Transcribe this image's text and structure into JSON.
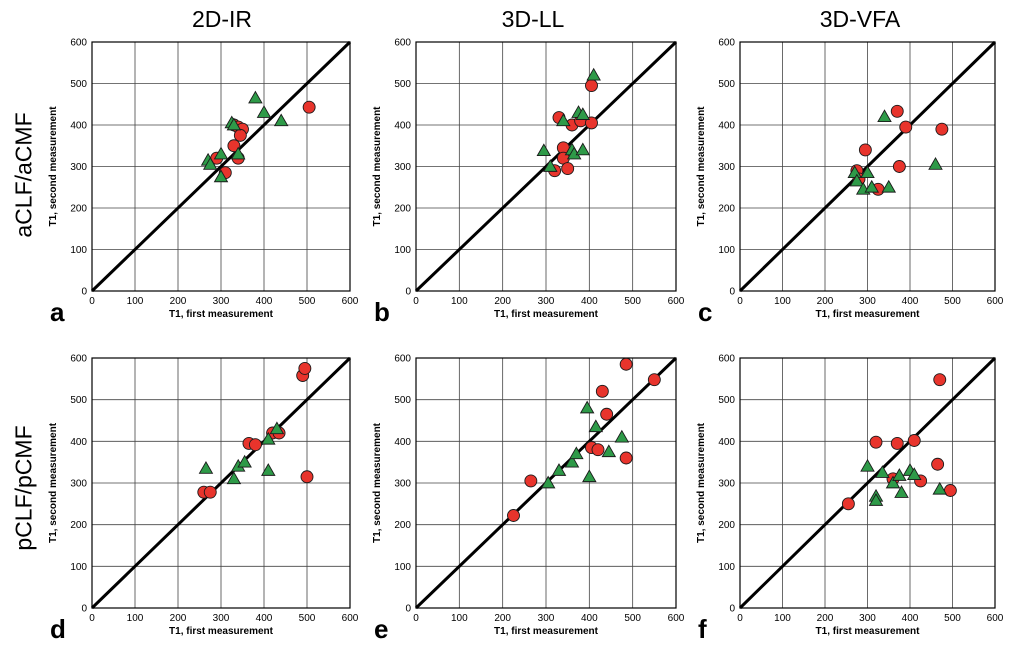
{
  "column_headers": [
    "2D-IR",
    "3D-LL",
    "3D-VFA"
  ],
  "row_headers": [
    "aCLF/aCMF",
    "pCLF/pCMF"
  ],
  "colors": {
    "circle_fill": "#e8342c",
    "triangle_fill": "#2e9a48",
    "marker_stroke": "#1a1a1a"
  },
  "chart_data": [
    {
      "type": "scatter",
      "panel_label": "a",
      "xlabel": "T1, first measurement",
      "ylabel": "T1, second measurement",
      "xlim": [
        0,
        600
      ],
      "ylim": [
        0,
        600
      ],
      "xticks": [
        0,
        100,
        200,
        300,
        400,
        500,
        600
      ],
      "yticks": [
        0,
        100,
        200,
        300,
        400,
        500,
        600
      ],
      "grid": true,
      "identity_line": true,
      "series": [
        {
          "marker": "circle",
          "points": [
            [
              330,
              400
            ],
            [
              340,
              395
            ],
            [
              350,
              390
            ],
            [
              345,
              375
            ],
            [
              330,
              350
            ],
            [
              340,
              320
            ],
            [
              310,
              285
            ],
            [
              290,
              320
            ],
            [
              505,
              443
            ]
          ]
        },
        {
          "marker": "triangle",
          "points": [
            [
              270,
              315
            ],
            [
              275,
              305
            ],
            [
              300,
              275
            ],
            [
              300,
              330
            ],
            [
              325,
              405
            ],
            [
              330,
              400
            ],
            [
              340,
              330
            ],
            [
              380,
              465
            ],
            [
              400,
              430
            ],
            [
              440,
              410
            ]
          ]
        }
      ]
    },
    {
      "type": "scatter",
      "panel_label": "b",
      "xlabel": "T1, first measurement",
      "ylabel": "T1, second measurement",
      "xlim": [
        0,
        600
      ],
      "ylim": [
        0,
        600
      ],
      "xticks": [
        0,
        100,
        200,
        300,
        400,
        500,
        600
      ],
      "yticks": [
        0,
        100,
        200,
        300,
        400,
        500,
        600
      ],
      "grid": true,
      "identity_line": true,
      "series": [
        {
          "marker": "circle",
          "points": [
            [
              330,
              418
            ],
            [
              360,
              400
            ],
            [
              380,
              410
            ],
            [
              405,
              405
            ],
            [
              405,
              495
            ],
            [
              340,
              345
            ],
            [
              340,
              320
            ],
            [
              320,
              290
            ],
            [
              350,
              295
            ]
          ]
        },
        {
          "marker": "triangle",
          "points": [
            [
              295,
              338
            ],
            [
              310,
              300
            ],
            [
              340,
              410
            ],
            [
              360,
              340
            ],
            [
              365,
              330
            ],
            [
              375,
              430
            ],
            [
              385,
              425
            ],
            [
              385,
              340
            ],
            [
              410,
              520
            ]
          ]
        }
      ]
    },
    {
      "type": "scatter",
      "panel_label": "c",
      "xlabel": "T1, first measurement",
      "ylabel": "T1, second measurement",
      "xlim": [
        0,
        600
      ],
      "ylim": [
        0,
        600
      ],
      "xticks": [
        0,
        100,
        200,
        300,
        400,
        500,
        600
      ],
      "yticks": [
        0,
        100,
        200,
        300,
        400,
        500,
        600
      ],
      "grid": true,
      "identity_line": true,
      "series": [
        {
          "marker": "circle",
          "points": [
            [
              275,
              290
            ],
            [
              280,
              270
            ],
            [
              295,
              340
            ],
            [
              325,
              245
            ],
            [
              370,
              433
            ],
            [
              375,
              300
            ],
            [
              390,
              395
            ],
            [
              475,
              390
            ]
          ]
        },
        {
          "marker": "triangle",
          "points": [
            [
              270,
              285
            ],
            [
              275,
              265
            ],
            [
              290,
              245
            ],
            [
              300,
              285
            ],
            [
              310,
              250
            ],
            [
              340,
              420
            ],
            [
              350,
              250
            ],
            [
              460,
              305
            ]
          ]
        }
      ]
    },
    {
      "type": "scatter",
      "panel_label": "d",
      "xlabel": "T1, first measurement",
      "ylabel": "T1, second measurement",
      "xlim": [
        0,
        600
      ],
      "ylim": [
        0,
        600
      ],
      "xticks": [
        0,
        100,
        200,
        300,
        400,
        500,
        600
      ],
      "yticks": [
        0,
        100,
        200,
        300,
        400,
        500,
        600
      ],
      "grid": true,
      "identity_line": true,
      "series": [
        {
          "marker": "circle",
          "points": [
            [
              260,
              278
            ],
            [
              275,
              278
            ],
            [
              365,
              395
            ],
            [
              380,
              392
            ],
            [
              420,
              420
            ],
            [
              435,
              420
            ],
            [
              490,
              558
            ],
            [
              495,
              575
            ],
            [
              500,
              315
            ]
          ]
        },
        {
          "marker": "triangle",
          "points": [
            [
              265,
              335
            ],
            [
              330,
              310
            ],
            [
              340,
              340
            ],
            [
              355,
              350
            ],
            [
              410,
              405
            ],
            [
              410,
              330
            ],
            [
              430,
              430
            ]
          ]
        }
      ]
    },
    {
      "type": "scatter",
      "panel_label": "e",
      "xlabel": "T1, first measurement",
      "ylabel": "T1, second measurement",
      "xlim": [
        0,
        600
      ],
      "ylim": [
        0,
        600
      ],
      "xticks": [
        0,
        100,
        200,
        300,
        400,
        500,
        600
      ],
      "yticks": [
        0,
        100,
        200,
        300,
        400,
        500,
        600
      ],
      "grid": true,
      "identity_line": true,
      "series": [
        {
          "marker": "circle",
          "points": [
            [
              225,
              222
            ],
            [
              265,
              305
            ],
            [
              405,
              385
            ],
            [
              420,
              380
            ],
            [
              430,
              520
            ],
            [
              440,
              465
            ],
            [
              485,
              360
            ],
            [
              485,
              585
            ],
            [
              550,
              548
            ]
          ]
        },
        {
          "marker": "triangle",
          "points": [
            [
              305,
              300
            ],
            [
              330,
              330
            ],
            [
              360,
              350
            ],
            [
              370,
              370
            ],
            [
              395,
              480
            ],
            [
              400,
              315
            ],
            [
              415,
              435
            ],
            [
              445,
              375
            ],
            [
              475,
              410
            ]
          ]
        }
      ]
    },
    {
      "type": "scatter",
      "panel_label": "f",
      "xlabel": "T1, first measurement",
      "ylabel": "T1, second measurement",
      "xlim": [
        0,
        600
      ],
      "ylim": [
        0,
        600
      ],
      "xticks": [
        0,
        100,
        200,
        300,
        400,
        500,
        600
      ],
      "yticks": [
        0,
        100,
        200,
        300,
        400,
        500,
        600
      ],
      "grid": true,
      "identity_line": true,
      "series": [
        {
          "marker": "circle",
          "points": [
            [
              255,
              250
            ],
            [
              320,
              398
            ],
            [
              370,
              395
            ],
            [
              410,
              402
            ],
            [
              360,
              310
            ],
            [
              425,
              305
            ],
            [
              465,
              345
            ],
            [
              470,
              548
            ],
            [
              495,
              282
            ]
          ]
        },
        {
          "marker": "triangle",
          "points": [
            [
              300,
              340
            ],
            [
              320,
              268
            ],
            [
              320,
              258
            ],
            [
              335,
              325
            ],
            [
              360,
              300
            ],
            [
              375,
              318
            ],
            [
              380,
              277
            ],
            [
              400,
              330
            ],
            [
              410,
              320
            ],
            [
              470,
              285
            ]
          ]
        }
      ]
    }
  ]
}
